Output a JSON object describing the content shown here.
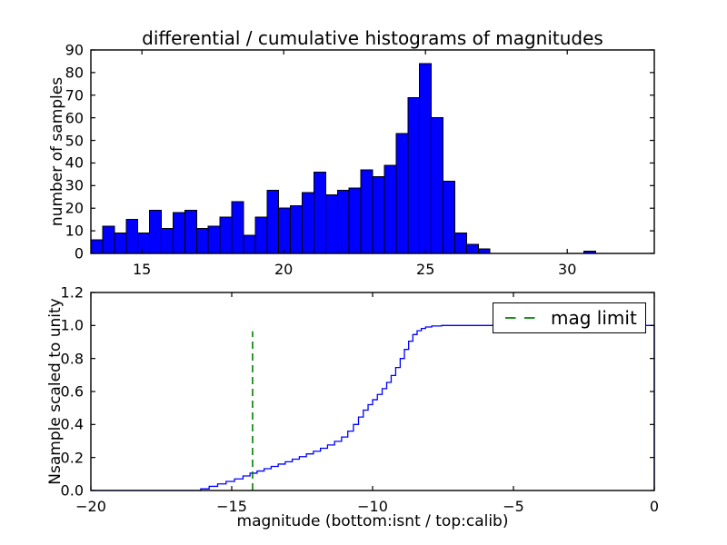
{
  "figure": {
    "background": "#ffffff"
  },
  "top_plot": {
    "title": "differential / cumulative histograms of magnitudes",
    "ylabel": "number of samples",
    "xtick_labels": [
      "15",
      "20",
      "25",
      "30"
    ],
    "ytick_labels": [
      "0",
      "10",
      "20",
      "30",
      "40",
      "50",
      "60",
      "70",
      "80",
      "90"
    ]
  },
  "bottom_plot": {
    "ylabel": "Nsample scaled to unity",
    "xlabel": "magnitude (bottom:isnt / top:calib)",
    "xtick_labels": [
      "−20",
      "−15",
      "−10",
      "−5",
      "0"
    ],
    "ytick_labels": [
      "0.0",
      "0.2",
      "0.4",
      "0.6",
      "0.8",
      "1.0",
      "1.2"
    ]
  },
  "legend": {
    "label": "mag limit",
    "line_color": "#008000",
    "line_style": "dashed"
  },
  "chart_data": [
    {
      "type": "bar",
      "subtype": "differential-histogram",
      "title": "differential / cumulative histograms of magnitudes",
      "xlabel": "",
      "ylabel": "number of samples",
      "xlim": [
        13.2,
        33.07
      ],
      "ylim": [
        0,
        90
      ],
      "xticks": [
        15,
        20,
        25,
        30
      ],
      "yticks": [
        0,
        10,
        20,
        30,
        40,
        50,
        60,
        70,
        80,
        90
      ],
      "grid": false,
      "bin_start": 13.2,
      "bin_width": 0.414,
      "counts": [
        6,
        12,
        9,
        15,
        9,
        19,
        11,
        18,
        19,
        11,
        12,
        16,
        23,
        8,
        16,
        28,
        20,
        21,
        27,
        36,
        26,
        28,
        29,
        37,
        34,
        39,
        53,
        69,
        84,
        60,
        32,
        9,
        4,
        2,
        0,
        0,
        0,
        0,
        0,
        0,
        0,
        0,
        1,
        0,
        0,
        0,
        0,
        0
      ],
      "bar_color": "#0000ff",
      "bar_edge_color": "#000000"
    },
    {
      "type": "line",
      "subtype": "cumulative-step",
      "xlabel": "magnitude (bottom:isnt / top:calib)",
      "ylabel": "Nsample scaled to unity",
      "xlim": [
        -20,
        0
      ],
      "ylim": [
        0,
        1.2
      ],
      "xticks": [
        -20,
        -15,
        -10,
        -5,
        0
      ],
      "yticks": [
        0.0,
        0.2,
        0.4,
        0.6,
        0.8,
        1.0,
        1.2
      ],
      "grid": false,
      "line_color": "#0000ff",
      "start_level": 0.0,
      "steps": [
        [
          -16.1,
          0.01
        ],
        [
          -15.8,
          0.025
        ],
        [
          -15.5,
          0.04
        ],
        [
          -15.2,
          0.055
        ],
        [
          -14.9,
          0.07
        ],
        [
          -14.6,
          0.088
        ],
        [
          -14.35,
          0.105
        ],
        [
          -14.1,
          0.118
        ],
        [
          -13.85,
          0.132
        ],
        [
          -13.6,
          0.146
        ],
        [
          -13.35,
          0.16
        ],
        [
          -13.1,
          0.174
        ],
        [
          -12.85,
          0.19
        ],
        [
          -12.6,
          0.205
        ],
        [
          -12.35,
          0.222
        ],
        [
          -12.1,
          0.238
        ],
        [
          -11.85,
          0.256
        ],
        [
          -11.6,
          0.276
        ],
        [
          -11.35,
          0.298
        ],
        [
          -11.1,
          0.324
        ],
        [
          -10.88,
          0.36
        ],
        [
          -10.68,
          0.4
        ],
        [
          -10.5,
          0.445
        ],
        [
          -10.33,
          0.487
        ],
        [
          -10.16,
          0.52
        ],
        [
          -10.0,
          0.55
        ],
        [
          -9.83,
          0.582
        ],
        [
          -9.66,
          0.617
        ],
        [
          -9.5,
          0.655
        ],
        [
          -9.34,
          0.697
        ],
        [
          -9.18,
          0.745
        ],
        [
          -9.02,
          0.8
        ],
        [
          -8.87,
          0.855
        ],
        [
          -8.72,
          0.905
        ],
        [
          -8.57,
          0.945
        ],
        [
          -8.42,
          0.968
        ],
        [
          -8.27,
          0.982
        ],
        [
          -8.12,
          0.991
        ],
        [
          -7.9,
          0.997
        ],
        [
          -7.55,
          1.0
        ]
      ],
      "plateau_level": 1.0,
      "closes_to_zero_at_x": 0,
      "mag_limit_line": {
        "x": -14.26,
        "y_bottom": 0.0,
        "y_top": 0.965,
        "color": "#008000",
        "style": "dashed",
        "label": "mag limit"
      },
      "legend": {
        "label": "mag limit",
        "position": "upper right"
      }
    }
  ]
}
